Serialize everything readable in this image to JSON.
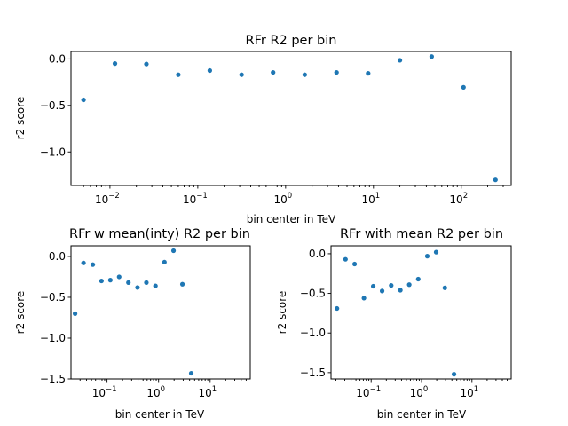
{
  "figure": {
    "width": 640,
    "height": 480,
    "background": "#ffffff",
    "marker_color": "#1f77b4"
  },
  "chart_data": [
    {
      "id": "top",
      "type": "scatter",
      "title": "RFr R2 per bin",
      "xlabel": "bin center in TeV",
      "ylabel": "r2 score",
      "xscale": "log",
      "xlim": [
        0.0036,
        370
      ],
      "ylim": [
        -1.36,
        0.08
      ],
      "xticks": [
        {
          "value": 0.01,
          "label": "10",
          "sup": "−2"
        },
        {
          "value": 0.1,
          "label": "10",
          "sup": "−1"
        },
        {
          "value": 1,
          "label": "10",
          "sup": "0"
        },
        {
          "value": 10,
          "label": "10",
          "sup": "1"
        },
        {
          "value": 100,
          "label": "10",
          "sup": "2"
        }
      ],
      "yticks": [
        {
          "value": 0.0,
          "label": "0.0"
        },
        {
          "value": -0.5,
          "label": "−0.5"
        },
        {
          "value": -1.0,
          "label": "−1.0"
        }
      ],
      "x": [
        0.005,
        0.0114,
        0.026,
        0.06,
        0.137,
        0.315,
        0.72,
        1.65,
        3.8,
        8.7,
        20,
        46,
        106,
        245
      ],
      "y": [
        -0.44,
        -0.05,
        -0.055,
        -0.17,
        -0.125,
        -0.17,
        -0.145,
        -0.17,
        -0.145,
        -0.155,
        -0.015,
        0.025,
        -0.305,
        -1.3
      ]
    },
    {
      "id": "bottom-left",
      "type": "scatter",
      "title": "RFr w mean(inty) R2 per bin",
      "xlabel": "bin center in TeV",
      "ylabel": "r2 score",
      "xscale": "log",
      "xlim": [
        0.02,
        60
      ],
      "ylim": [
        -1.5,
        0.13
      ],
      "xticks": [
        {
          "value": 0.1,
          "label": "10",
          "sup": "−1"
        },
        {
          "value": 1,
          "label": "10",
          "sup": "0"
        },
        {
          "value": 10,
          "label": "10",
          "sup": "1"
        }
      ],
      "yticks": [
        {
          "value": 0.0,
          "label": "0.0"
        },
        {
          "value": -0.5,
          "label": "−0.5"
        },
        {
          "value": -1.0,
          "label": "−1.0"
        },
        {
          "value": -1.5,
          "label": "−1.5"
        }
      ],
      "x": [
        0.024,
        0.035,
        0.053,
        0.078,
        0.116,
        0.172,
        0.26,
        0.39,
        0.58,
        0.87,
        1.3,
        1.95,
        2.9,
        4.3
      ],
      "y": [
        -0.7,
        -0.08,
        -0.1,
        -0.3,
        -0.29,
        -0.25,
        -0.32,
        -0.38,
        -0.32,
        -0.36,
        -0.07,
        0.07,
        -0.34,
        -1.43
      ]
    },
    {
      "id": "bottom-right",
      "type": "scatter",
      "title": "RFr with mean  R2 per bin",
      "xlabel": "bin center in TeV",
      "ylabel": "r2 score",
      "xscale": "log",
      "xlim": [
        0.016,
        60
      ],
      "ylim": [
        -1.58,
        0.1
      ],
      "xticks": [
        {
          "value": 0.1,
          "label": "10",
          "sup": "−1"
        },
        {
          "value": 1,
          "label": "10",
          "sup": "0"
        },
        {
          "value": 10,
          "label": "10",
          "sup": "1"
        }
      ],
      "yticks": [
        {
          "value": 0.0,
          "label": "0.0"
        },
        {
          "value": -0.5,
          "label": "−0.5"
        },
        {
          "value": -1.0,
          "label": "−1.0"
        },
        {
          "value": -1.5,
          "label": "−1.5"
        }
      ],
      "x": [
        0.021,
        0.031,
        0.047,
        0.072,
        0.11,
        0.165,
        0.25,
        0.38,
        0.57,
        0.86,
        1.3,
        1.95,
        2.9,
        4.4
      ],
      "y": [
        -0.69,
        -0.07,
        -0.13,
        -0.56,
        -0.41,
        -0.47,
        -0.4,
        -0.46,
        -0.39,
        -0.32,
        -0.03,
        0.02,
        -0.43,
        -1.52
      ]
    }
  ]
}
